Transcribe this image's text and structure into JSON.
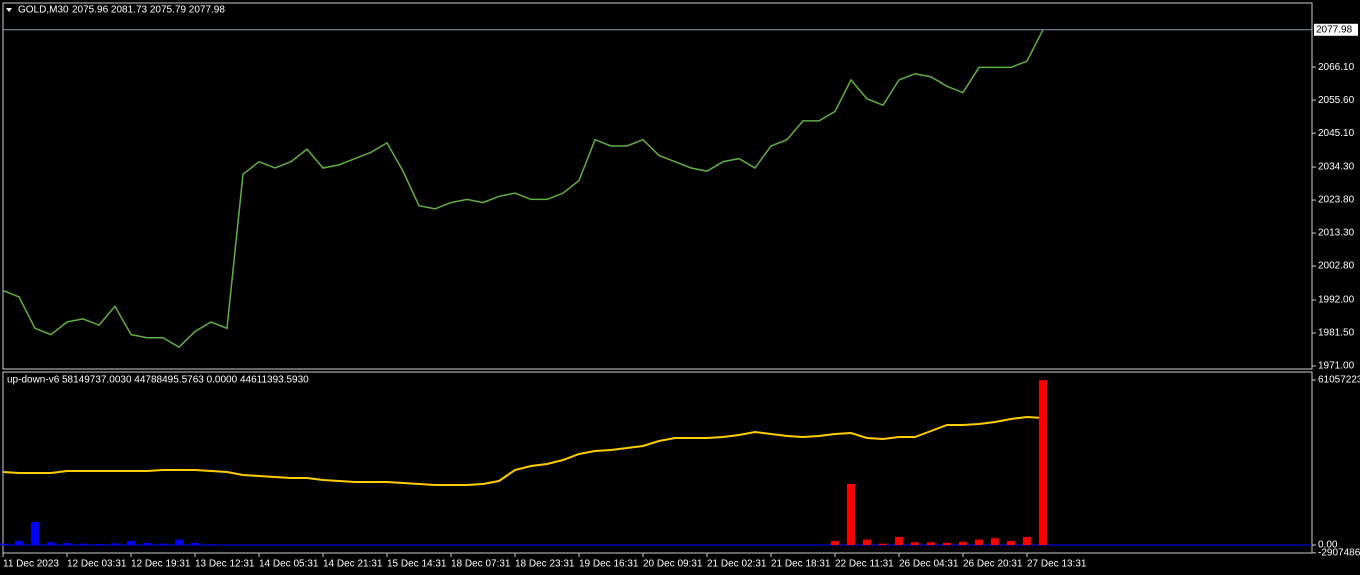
{
  "chart_data": [
    {
      "type": "line",
      "title": "GOLD,M30",
      "subtitle": "2075.96 2081.73 2075.79 2077.98",
      "categories": [
        "11 Dec 2023",
        null,
        null,
        null,
        "12 Dec 03:31",
        null,
        null,
        null,
        "12 Dec 19:31",
        null,
        null,
        null,
        "13 Dec 12:31",
        null,
        null,
        null,
        "14 Dec 05:31",
        null,
        null,
        null,
        "14 Dec 21:31",
        null,
        null,
        null,
        "15 Dec 14:31",
        null,
        null,
        null,
        "18 Dec 07:31",
        null,
        null,
        null,
        "18 Dec 23:31",
        null,
        null,
        null,
        "19 Dec 16:31",
        null,
        null,
        null,
        "20 Dec 09:31",
        null,
        null,
        null,
        "21 Dec 02:31",
        null,
        null,
        null,
        "21 Dec 18:31",
        null,
        null,
        null,
        "22 Dec 11:31",
        null,
        null,
        null,
        "26 Dec 04:31",
        null,
        null,
        null,
        "26 Dec 20:31",
        null,
        null,
        null,
        "27 Dec 13:31",
        null
      ],
      "values": [
        1995,
        1993,
        1983,
        1981,
        1985,
        1986,
        1984,
        1990,
        1981,
        1980,
        1980,
        1977,
        1982,
        1985,
        1983,
        2032,
        2036,
        2034,
        2036,
        2040,
        2034,
        2035,
        2037,
        2039,
        2042,
        2033,
        2022,
        2021,
        2023,
        2024,
        2023,
        2025,
        2026,
        2024,
        2024,
        2026,
        2030,
        2043,
        2041,
        2041,
        2043,
        2038,
        2036,
        2034,
        2033,
        2036,
        2037,
        2034,
        2041,
        2043,
        2049,
        2049,
        2052,
        2062,
        2056,
        2054,
        2062,
        2064,
        2063,
        2060,
        2058,
        2066,
        2066,
        2066,
        2068,
        2078
      ],
      "color": "#5fb041",
      "last_price": 2077.98,
      "ylim": [
        1970.05,
        2086.5
      ],
      "yticks": [
        {
          "value": 1971,
          "label": "1971.00"
        },
        {
          "value": 1981.5,
          "label": "1981.50"
        },
        {
          "value": 1992,
          "label": "1992.00"
        },
        {
          "value": 2002.8,
          "label": "2002.80"
        },
        {
          "value": 2013.3,
          "label": "2013.30"
        },
        {
          "value": 2023.8,
          "label": "2023.80"
        },
        {
          "value": 2034.3,
          "label": "2034.30"
        },
        {
          "value": 2045.1,
          "label": "2045.10"
        },
        {
          "value": 2055.6,
          "label": "2055.60"
        },
        {
          "value": 2066.1,
          "label": "2066.10"
        }
      ]
    },
    {
      "type": "combo",
      "title": "up-down-v6",
      "subtitle": "58149737.0030 44788495.5763 0.0000 44611393.5930",
      "series": [
        {
          "type": "line",
          "color": "#ffcc00",
          "values": [
            27010000,
            26640000,
            26640000,
            26640000,
            27380000,
            27380000,
            27380000,
            27380000,
            27380000,
            27380000,
            27750000,
            27750000,
            27750000,
            27380000,
            27010000,
            25900000,
            25530000,
            25160000,
            24790000,
            24790000,
            24050000,
            23680000,
            23310000,
            23310000,
            23310000,
            22940000,
            22570000,
            22200000,
            22200000,
            22200000,
            22570000,
            23680000,
            27750000,
            29230000,
            29970000,
            31450000,
            33670000,
            34780000,
            35150000,
            35890000,
            36630000,
            38480000,
            39590000,
            39590000,
            39590000,
            39960000,
            40700000,
            41810000,
            41070000,
            40330000,
            39960000,
            40330000,
            41070000,
            41440000,
            39590000,
            39220000,
            39960000,
            39960000,
            42180000,
            44400000,
            44400000,
            44770000,
            45510000,
            46620000,
            47360000,
            46990000
          ]
        },
        {
          "type": "bar",
          "color": "#0000ff",
          "values": [
            500000,
            1500000,
            8500000,
            1000000,
            700000,
            500000,
            400000,
            600000,
            1500000,
            800000,
            500000,
            2000000,
            800000,
            300000,
            0,
            0,
            0,
            0,
            0,
            0,
            0,
            0,
            0,
            0,
            0,
            0,
            0,
            0,
            0,
            0,
            0,
            0,
            0,
            0,
            0,
            0,
            0,
            0,
            0,
            0,
            0,
            0,
            0,
            0,
            0,
            0,
            0,
            0,
            0,
            0,
            0,
            0,
            0,
            0,
            0,
            0,
            0,
            0,
            0,
            0,
            0,
            0,
            0,
            0,
            0,
            0
          ]
        },
        {
          "type": "bar",
          "color": "#ff0000",
          "values": [
            0,
            0,
            0,
            0,
            0,
            0,
            0,
            0,
            0,
            0,
            0,
            0,
            0,
            0,
            0,
            0,
            0,
            0,
            0,
            0,
            0,
            0,
            0,
            0,
            0,
            0,
            0,
            0,
            0,
            0,
            0,
            0,
            0,
            0,
            0,
            0,
            0,
            0,
            0,
            0,
            0,
            0,
            0,
            0,
            0,
            0,
            0,
            0,
            0,
            0,
            0,
            0,
            1500000,
            22600000,
            2000000,
            500000,
            3000000,
            1000000,
            1000000,
            800000,
            1200000,
            2000000,
            2500000,
            1500000,
            3000000,
            61000000
          ]
        }
      ],
      "ylim": [
        -2960000,
        64010000
      ],
      "yticks": [
        {
          "value": 61057223,
          "label": "61057223."
        },
        {
          "value": 0,
          "label": "0.00"
        },
        {
          "value": -2907486,
          "label": "-2907486."
        }
      ]
    }
  ]
}
